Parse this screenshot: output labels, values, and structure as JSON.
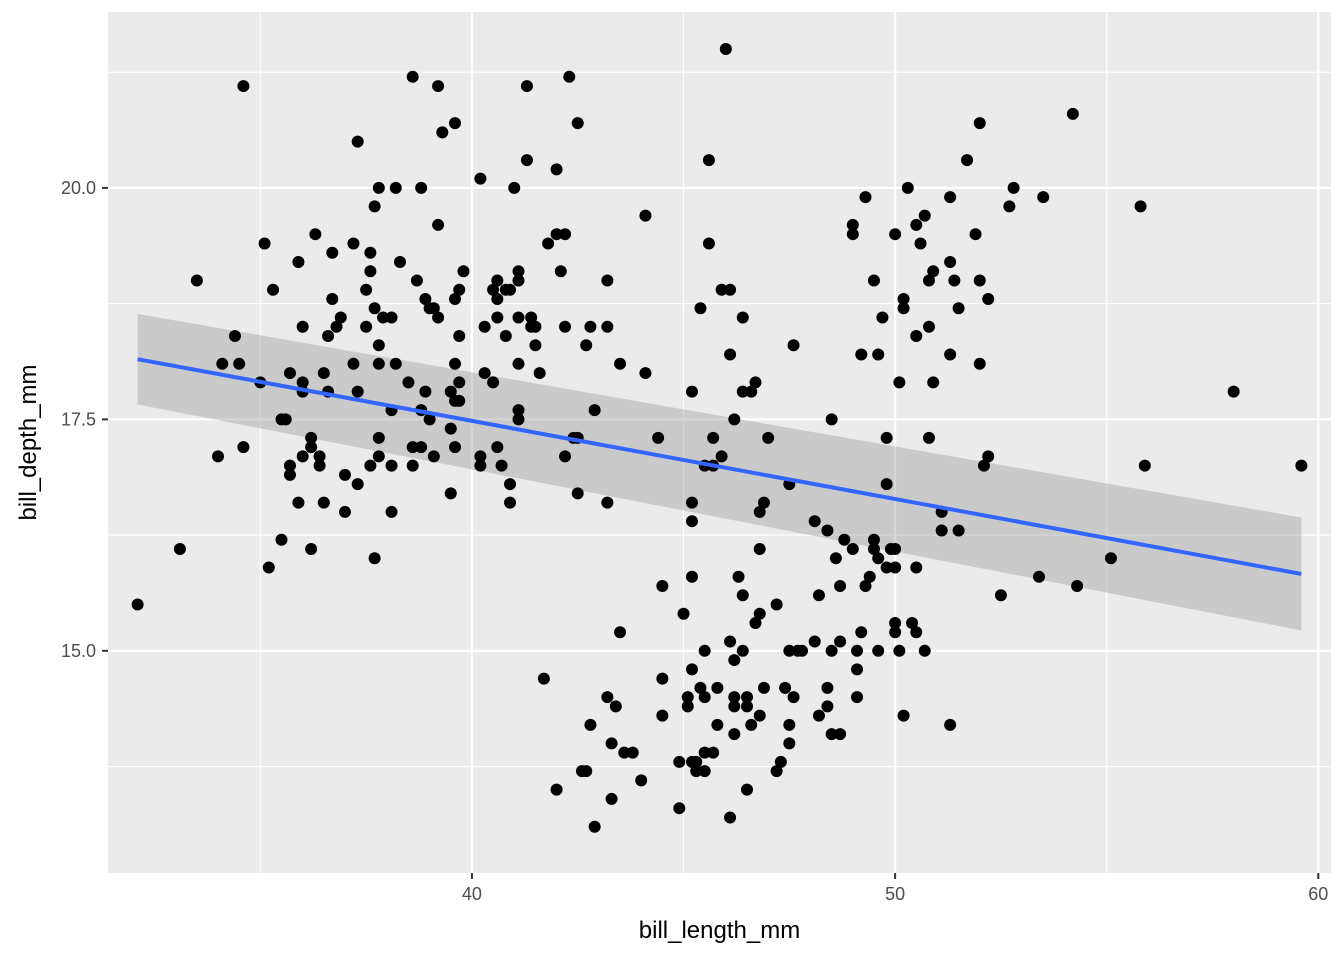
{
  "chart_data": {
    "type": "scatter",
    "title": "",
    "xlabel": "bill_length_mm",
    "ylabel": "bill_depth_mm",
    "xlim": [
      31.4,
      60.3
    ],
    "ylim": [
      12.6,
      21.9
    ],
    "x_ticks": [
      40,
      50,
      60
    ],
    "x_tick_labels": [
      "40",
      "50",
      "60"
    ],
    "y_ticks": [
      15.0,
      17.5,
      20.0
    ],
    "y_tick_labels": [
      "15.0",
      "17.5",
      "20.0"
    ],
    "grid": true,
    "panel_background": "#ebebeb",
    "grid_color": "#ffffff",
    "point_color": "#000000",
    "smooth": {
      "method": "lm",
      "color": "#3366ff",
      "band_color": "#999999",
      "x_range": [
        32.1,
        59.6
      ],
      "line": [
        18.15,
        15.83
      ],
      "band_lower": [
        17.66,
        15.22
      ],
      "band_upper": [
        18.64,
        16.44
      ]
    },
    "points": [
      [
        32.1,
        15.5
      ],
      [
        33.1,
        16.1
      ],
      [
        33.5,
        19.0
      ],
      [
        34.0,
        17.1
      ],
      [
        34.1,
        18.1
      ],
      [
        34.4,
        18.4
      ],
      [
        34.5,
        18.1
      ],
      [
        34.6,
        21.1
      ],
      [
        34.6,
        17.2
      ],
      [
        35.0,
        17.9
      ],
      [
        35.1,
        19.4
      ],
      [
        35.2,
        15.9
      ],
      [
        35.3,
        18.9
      ],
      [
        35.5,
        16.2
      ],
      [
        35.5,
        17.5
      ],
      [
        35.6,
        17.5
      ],
      [
        35.7,
        17.0
      ],
      [
        35.7,
        16.9
      ],
      [
        35.7,
        18.0
      ],
      [
        35.9,
        16.6
      ],
      [
        35.9,
        19.2
      ],
      [
        36.0,
        17.1
      ],
      [
        36.0,
        17.8
      ],
      [
        36.0,
        18.5
      ],
      [
        36.0,
        17.9
      ],
      [
        36.2,
        16.1
      ],
      [
        36.2,
        17.3
      ],
      [
        36.2,
        17.2
      ],
      [
        36.3,
        19.5
      ],
      [
        36.4,
        17.0
      ],
      [
        36.4,
        17.1
      ],
      [
        36.5,
        16.6
      ],
      [
        36.5,
        18.0
      ],
      [
        36.6,
        18.4
      ],
      [
        36.6,
        17.8
      ],
      [
        36.7,
        18.8
      ],
      [
        36.7,
        19.3
      ],
      [
        36.8,
        18.5
      ],
      [
        36.9,
        18.6
      ],
      [
        37.0,
        16.5
      ],
      [
        37.0,
        16.9
      ],
      [
        37.2,
        18.1
      ],
      [
        37.2,
        19.4
      ],
      [
        37.3,
        16.8
      ],
      [
        37.3,
        17.8
      ],
      [
        37.3,
        20.5
      ],
      [
        37.5,
        18.9
      ],
      [
        37.5,
        18.5
      ],
      [
        37.6,
        17.0
      ],
      [
        37.6,
        19.3
      ],
      [
        37.6,
        19.1
      ],
      [
        37.7,
        18.7
      ],
      [
        37.7,
        16.0
      ],
      [
        37.7,
        19.8
      ],
      [
        37.8,
        17.1
      ],
      [
        37.8,
        17.3
      ],
      [
        37.8,
        18.1
      ],
      [
        37.8,
        18.3
      ],
      [
        37.8,
        20.0
      ],
      [
        37.9,
        18.6
      ],
      [
        38.1,
        17.6
      ],
      [
        38.1,
        17.0
      ],
      [
        38.1,
        16.5
      ],
      [
        38.1,
        18.6
      ],
      [
        38.2,
        18.1
      ],
      [
        38.2,
        20.0
      ],
      [
        38.3,
        19.2
      ],
      [
        38.5,
        17.9
      ],
      [
        38.6,
        17.2
      ],
      [
        38.6,
        21.2
      ],
      [
        38.6,
        17.0
      ],
      [
        38.7,
        19.0
      ],
      [
        38.8,
        17.2
      ],
      [
        38.8,
        17.6
      ],
      [
        38.8,
        20.0
      ],
      [
        38.9,
        17.8
      ],
      [
        38.9,
        18.8
      ],
      [
        39.0,
        17.5
      ],
      [
        39.0,
        18.7
      ],
      [
        39.1,
        17.1
      ],
      [
        39.1,
        18.7
      ],
      [
        39.2,
        18.6
      ],
      [
        39.2,
        19.6
      ],
      [
        39.2,
        21.1
      ],
      [
        39.3,
        20.6
      ],
      [
        39.5,
        16.7
      ],
      [
        39.5,
        17.4
      ],
      [
        39.5,
        17.8
      ],
      [
        39.6,
        17.7
      ],
      [
        39.6,
        17.2
      ],
      [
        39.6,
        18.1
      ],
      [
        39.6,
        18.8
      ],
      [
        39.6,
        20.7
      ],
      [
        39.7,
        17.7
      ],
      [
        39.7,
        17.9
      ],
      [
        39.7,
        18.4
      ],
      [
        39.7,
        18.9
      ],
      [
        39.8,
        19.1
      ],
      [
        40.2,
        17.1
      ],
      [
        40.2,
        17.0
      ],
      [
        40.2,
        20.1
      ],
      [
        40.3,
        18.0
      ],
      [
        40.3,
        18.5
      ],
      [
        40.5,
        17.9
      ],
      [
        40.5,
        18.9
      ],
      [
        40.6,
        17.2
      ],
      [
        40.6,
        18.6
      ],
      [
        40.6,
        18.8
      ],
      [
        40.6,
        19.0
      ],
      [
        40.7,
        17.0
      ],
      [
        40.8,
        18.4
      ],
      [
        40.8,
        18.9
      ],
      [
        40.9,
        16.6
      ],
      [
        40.9,
        16.8
      ],
      [
        40.9,
        18.9
      ],
      [
        41.0,
        20.0
      ],
      [
        41.1,
        17.5
      ],
      [
        41.1,
        17.6
      ],
      [
        41.1,
        18.1
      ],
      [
        41.1,
        18.6
      ],
      [
        41.1,
        19.0
      ],
      [
        41.1,
        19.1
      ],
      [
        41.3,
        20.3
      ],
      [
        41.3,
        21.1
      ],
      [
        41.4,
        18.5
      ],
      [
        41.4,
        18.6
      ],
      [
        41.5,
        18.3
      ],
      [
        41.5,
        18.5
      ],
      [
        41.6,
        18.0
      ],
      [
        41.7,
        14.7
      ],
      [
        41.8,
        19.4
      ],
      [
        42.0,
        13.5
      ],
      [
        42.0,
        19.5
      ],
      [
        42.0,
        20.2
      ],
      [
        42.1,
        19.1
      ],
      [
        42.2,
        17.1
      ],
      [
        42.2,
        18.5
      ],
      [
        42.2,
        19.5
      ],
      [
        42.3,
        21.2
      ],
      [
        42.4,
        17.3
      ],
      [
        42.5,
        16.7
      ],
      [
        42.5,
        17.3
      ],
      [
        42.5,
        20.7
      ],
      [
        42.6,
        13.7
      ],
      [
        42.7,
        13.7
      ],
      [
        42.7,
        18.3
      ],
      [
        42.8,
        14.2
      ],
      [
        42.8,
        18.5
      ],
      [
        42.9,
        13.1
      ],
      [
        42.9,
        17.6
      ],
      [
        43.2,
        14.5
      ],
      [
        43.2,
        16.6
      ],
      [
        43.2,
        18.5
      ],
      [
        43.2,
        19.0
      ],
      [
        43.3,
        13.4
      ],
      [
        43.3,
        14.0
      ],
      [
        43.4,
        14.4
      ],
      [
        43.5,
        15.2
      ],
      [
        43.5,
        18.1
      ],
      [
        43.6,
        13.9
      ],
      [
        43.8,
        13.9
      ],
      [
        44.0,
        13.6
      ],
      [
        44.1,
        18.0
      ],
      [
        44.1,
        19.7
      ],
      [
        44.4,
        17.3
      ],
      [
        44.5,
        14.3
      ],
      [
        44.5,
        14.7
      ],
      [
        44.5,
        15.7
      ],
      [
        44.9,
        13.3
      ],
      [
        44.9,
        13.8
      ],
      [
        45.0,
        15.4
      ],
      [
        45.1,
        14.4
      ],
      [
        45.1,
        14.5
      ],
      [
        45.2,
        13.8
      ],
      [
        45.2,
        14.8
      ],
      [
        45.2,
        15.8
      ],
      [
        45.2,
        16.4
      ],
      [
        45.2,
        16.6
      ],
      [
        45.2,
        17.8
      ],
      [
        45.3,
        13.7
      ],
      [
        45.3,
        13.8
      ],
      [
        45.4,
        14.6
      ],
      [
        45.4,
        18.7
      ],
      [
        45.5,
        13.7
      ],
      [
        45.5,
        13.9
      ],
      [
        45.5,
        14.5
      ],
      [
        45.5,
        15.0
      ],
      [
        45.5,
        17.0
      ],
      [
        45.6,
        19.4
      ],
      [
        45.6,
        20.3
      ],
      [
        45.7,
        13.9
      ],
      [
        45.7,
        17.0
      ],
      [
        45.7,
        17.3
      ],
      [
        45.8,
        14.2
      ],
      [
        45.8,
        14.6
      ],
      [
        45.9,
        17.1
      ],
      [
        45.9,
        18.9
      ],
      [
        46.0,
        21.5
      ],
      [
        46.1,
        13.2
      ],
      [
        46.1,
        15.1
      ],
      [
        46.1,
        18.2
      ],
      [
        46.1,
        18.9
      ],
      [
        46.2,
        14.1
      ],
      [
        46.2,
        14.4
      ],
      [
        46.2,
        14.5
      ],
      [
        46.2,
        14.9
      ],
      [
        46.2,
        17.5
      ],
      [
        46.3,
        15.8
      ],
      [
        46.4,
        15.0
      ],
      [
        46.4,
        15.6
      ],
      [
        46.4,
        17.8
      ],
      [
        46.4,
        18.6
      ],
      [
        46.5,
        13.5
      ],
      [
        46.5,
        14.4
      ],
      [
        46.5,
        14.5
      ],
      [
        46.6,
        14.2
      ],
      [
        46.6,
        17.8
      ],
      [
        46.7,
        15.3
      ],
      [
        46.7,
        17.9
      ],
      [
        46.8,
        14.3
      ],
      [
        46.8,
        15.4
      ],
      [
        46.8,
        16.1
      ],
      [
        46.8,
        16.5
      ],
      [
        46.9,
        14.6
      ],
      [
        46.9,
        16.6
      ],
      [
        47.0,
        17.3
      ],
      [
        47.2,
        13.7
      ],
      [
        47.2,
        15.5
      ],
      [
        47.3,
        13.8
      ],
      [
        47.4,
        14.6
      ],
      [
        47.5,
        14.0
      ],
      [
        47.5,
        14.2
      ],
      [
        47.5,
        15.0
      ],
      [
        47.5,
        16.8
      ],
      [
        47.6,
        14.5
      ],
      [
        47.6,
        18.3
      ],
      [
        47.7,
        15.0
      ],
      [
        47.8,
        15.0
      ],
      [
        48.1,
        15.1
      ],
      [
        48.1,
        16.4
      ],
      [
        48.2,
        14.3
      ],
      [
        48.2,
        15.6
      ],
      [
        48.4,
        14.4
      ],
      [
        48.4,
        14.6
      ],
      [
        48.4,
        16.3
      ],
      [
        48.5,
        14.1
      ],
      [
        48.5,
        15.0
      ],
      [
        48.5,
        17.5
      ],
      [
        48.6,
        16.0
      ],
      [
        48.7,
        14.1
      ],
      [
        48.7,
        15.1
      ],
      [
        48.7,
        15.7
      ],
      [
        48.8,
        16.2
      ],
      [
        49.0,
        16.1
      ],
      [
        49.0,
        19.5
      ],
      [
        49.0,
        19.6
      ],
      [
        49.1,
        14.5
      ],
      [
        49.1,
        14.8
      ],
      [
        49.1,
        15.0
      ],
      [
        49.2,
        15.2
      ],
      [
        49.2,
        18.2
      ],
      [
        49.3,
        15.7
      ],
      [
        49.3,
        19.9
      ],
      [
        49.4,
        15.8
      ],
      [
        49.5,
        16.1
      ],
      [
        49.5,
        16.2
      ],
      [
        49.5,
        19.0
      ],
      [
        49.6,
        15.0
      ],
      [
        49.6,
        16.0
      ],
      [
        49.6,
        18.2
      ],
      [
        49.7,
        18.6
      ],
      [
        49.8,
        15.9
      ],
      [
        49.8,
        16.8
      ],
      [
        49.8,
        17.3
      ],
      [
        49.9,
        16.1
      ],
      [
        50.0,
        15.2
      ],
      [
        50.0,
        15.3
      ],
      [
        50.0,
        15.9
      ],
      [
        50.0,
        16.1
      ],
      [
        50.0,
        19.5
      ],
      [
        50.1,
        15.0
      ],
      [
        50.1,
        17.9
      ],
      [
        50.2,
        14.3
      ],
      [
        50.2,
        18.7
      ],
      [
        50.2,
        18.8
      ],
      [
        50.3,
        20.0
      ],
      [
        50.4,
        15.3
      ],
      [
        50.5,
        15.2
      ],
      [
        50.5,
        15.9
      ],
      [
        50.5,
        18.4
      ],
      [
        50.5,
        19.6
      ],
      [
        50.6,
        19.4
      ],
      [
        50.7,
        15.0
      ],
      [
        50.7,
        19.7
      ],
      [
        50.8,
        17.3
      ],
      [
        50.8,
        18.5
      ],
      [
        50.8,
        19.0
      ],
      [
        50.9,
        17.9
      ],
      [
        50.9,
        19.1
      ],
      [
        51.1,
        16.3
      ],
      [
        51.1,
        16.5
      ],
      [
        51.3,
        14.2
      ],
      [
        51.3,
        18.2
      ],
      [
        51.3,
        19.2
      ],
      [
        51.3,
        19.9
      ],
      [
        51.4,
        19.0
      ],
      [
        51.5,
        16.3
      ],
      [
        51.5,
        18.7
      ],
      [
        51.7,
        20.3
      ],
      [
        51.9,
        19.5
      ],
      [
        52.0,
        18.1
      ],
      [
        52.0,
        19.0
      ],
      [
        52.0,
        20.7
      ],
      [
        52.1,
        17.0
      ],
      [
        52.2,
        17.1
      ],
      [
        52.2,
        18.8
      ],
      [
        52.5,
        15.6
      ],
      [
        52.7,
        19.8
      ],
      [
        52.8,
        20.0
      ],
      [
        53.4,
        15.8
      ],
      [
        53.5,
        19.9
      ],
      [
        54.2,
        20.8
      ],
      [
        54.3,
        15.7
      ],
      [
        55.1,
        16.0
      ],
      [
        55.8,
        19.8
      ],
      [
        55.9,
        17.0
      ],
      [
        58.0,
        17.8
      ],
      [
        59.6,
        17.0
      ]
    ]
  }
}
